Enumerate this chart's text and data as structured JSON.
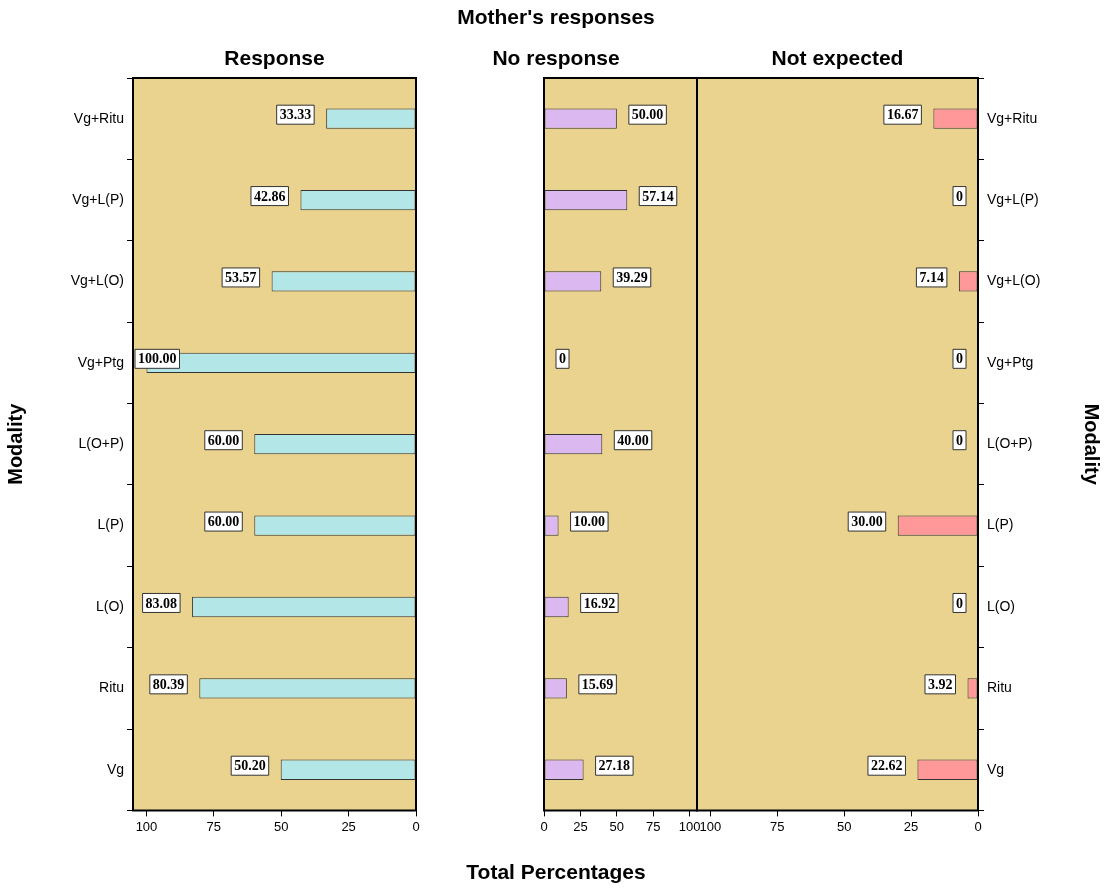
{
  "chart_data": [
    {
      "type": "bar",
      "orientation": "horizontal",
      "title": "Response",
      "ylabel": "Modality",
      "categories": [
        "Vg+Ritu",
        "Vg+L(P)",
        "Vg+L(O)",
        "Vg+Ptg",
        "L(O+P)",
        "L(P)",
        "L(O)",
        "Ritu",
        "Vg"
      ],
      "series": [
        {
          "color": "#b3e6e6",
          "values": [
            33.33,
            42.86,
            53.57,
            100,
            60,
            60,
            83.08,
            80.39,
            50.2
          ],
          "value_labels": [
            "33.33",
            "42.86",
            "53.57",
            "100.00",
            "60.00",
            "60.00",
            "83.08",
            "80.39",
            "50.20"
          ]
        }
      ],
      "xlim": [
        105,
        0
      ],
      "xticks": [
        100,
        75,
        50,
        25,
        0
      ],
      "grid": false,
      "legend": false
    },
    {
      "type": "bar",
      "orientation": "horizontal",
      "title": "Mother's responses",
      "subtitle": "No response",
      "xlabel": "Total Percentages",
      "categories": [
        null,
        null,
        null,
        null,
        null,
        null,
        null,
        null,
        null
      ],
      "series": [
        {
          "color": "#dcb8f0",
          "values": [
            50,
            57.14,
            39.29,
            0,
            40,
            10,
            16.92,
            15.69,
            27.18
          ],
          "value_labels": [
            "50.00",
            "57.14",
            "39.29",
            "0",
            "40.00",
            "10.00",
            "16.92",
            "15.69",
            "27.18"
          ]
        }
      ],
      "xlim": [
        0,
        105
      ],
      "xticks": [
        0,
        25,
        50,
        75,
        100
      ],
      "tick_labels": "x",
      "grid": false,
      "legend": false
    },
    {
      "type": "bar",
      "orientation": "horizontal",
      "title": "Not expected",
      "ylabel": "Modality",
      "categories": [
        "Vg+Ritu",
        "Vg+L(P)",
        "Vg+L(O)",
        "Vg+Ptg",
        "L(O+P)",
        "L(P)",
        "L(O)",
        "Ritu",
        "Vg"
      ],
      "series": [
        {
          "color": "#ff9999",
          "values": [
            16.67,
            0,
            7.14,
            0,
            0,
            30,
            0,
            3.92,
            22.62
          ],
          "value_labels": [
            "16.67",
            "0",
            "7.14",
            "0",
            "0",
            "30.00",
            "0",
            "3.92",
            "22.62"
          ]
        }
      ],
      "xlim": [
        105,
        0
      ],
      "xticks": [
        100,
        75,
        50,
        25,
        0
      ],
      "grid": false,
      "legend": false
    }
  ]
}
